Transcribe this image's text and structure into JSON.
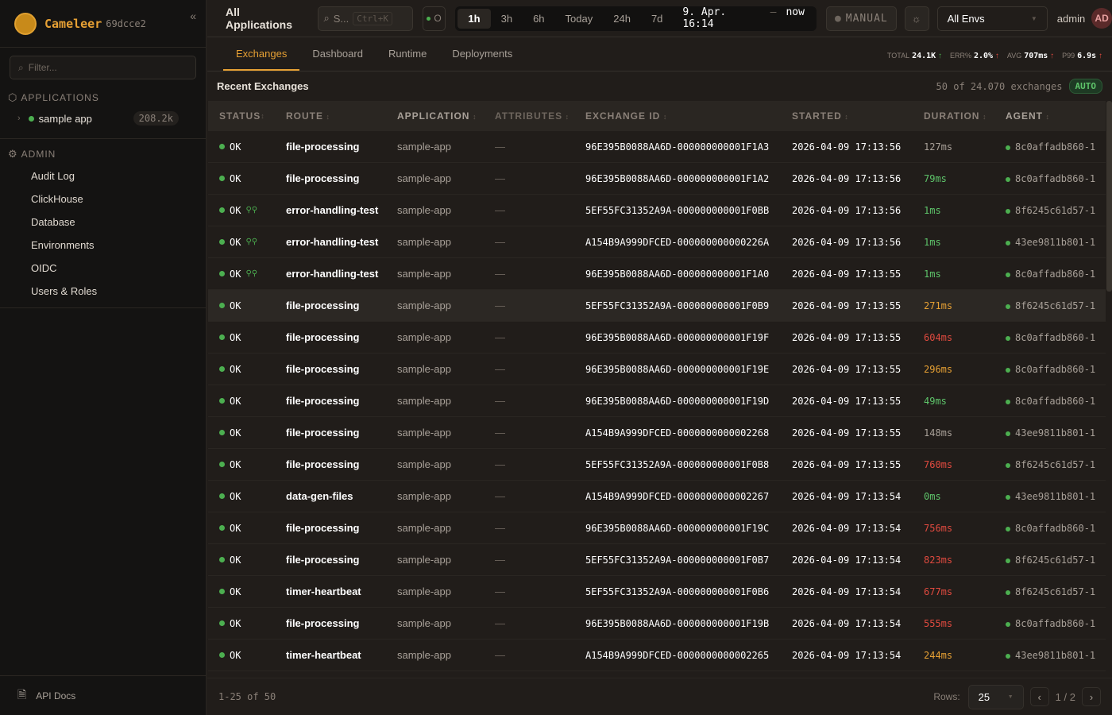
{
  "brand": {
    "name": "Cameleer",
    "version": "69dcce2"
  },
  "sidebar": {
    "filter_placeholder": "Filter...",
    "applications_label": "APPLICATIONS",
    "apps": [
      {
        "name": "sample app",
        "count": "208.2k"
      }
    ],
    "admin_label": "ADMIN",
    "admin_items": [
      "Audit Log",
      "ClickHouse",
      "Database",
      "Environments",
      "OIDC",
      "Users & Roles"
    ],
    "api_docs": "API Docs"
  },
  "topbar": {
    "title": "All Applications",
    "search_placeholder": "S...",
    "search_shortcut": "Ctrl+K",
    "live_label": "O",
    "time_buttons": [
      "1h",
      "3h",
      "6h",
      "Today",
      "24h",
      "7d"
    ],
    "active_time": "1h",
    "range_from": "9. Apr. 16:14",
    "range_sep": "–",
    "range_to": "now",
    "manual_label": "MANUAL",
    "env_select": "All Envs",
    "user": "admin",
    "avatar": "AD"
  },
  "tabs": [
    {
      "label": "Exchanges",
      "active": true
    },
    {
      "label": "Dashboard"
    },
    {
      "label": "Runtime"
    },
    {
      "label": "Deployments"
    }
  ],
  "kpis": [
    {
      "label": "TOTAL",
      "value": "24.1K",
      "trend": "up-good"
    },
    {
      "label": "ERR%",
      "value": "2.0%",
      "trend": "up-bad"
    },
    {
      "label": "AVG",
      "value": "707ms",
      "trend": "up-bad"
    },
    {
      "label": "P99",
      "value": "6.9s",
      "trend": "up-bad"
    }
  ],
  "section": {
    "title": "Recent Exchanges",
    "count": "50 of 24.070 exchanges",
    "auto": "AUTO"
  },
  "columns": [
    "STATUS",
    "ROUTE",
    "APPLICATION",
    "ATTRIBUTES",
    "EXCHANGE ID",
    "STARTED",
    "DURATION",
    "AGENT"
  ],
  "rows": [
    [
      "OK",
      false,
      "file-processing",
      "sample-app",
      "—",
      "96E395B0088AA6D-000000000001F1A3",
      "2026-04-09 17:13:56",
      "127ms",
      "8c0affadb860-1"
    ],
    [
      "OK",
      false,
      "file-processing",
      "sample-app",
      "—",
      "96E395B0088AA6D-000000000001F1A2",
      "2026-04-09 17:13:56",
      "79ms",
      "8c0affadb860-1"
    ],
    [
      "OK",
      true,
      "error-handling-test",
      "sample-app",
      "—",
      "5EF55FC31352A9A-000000000001F0BB",
      "2026-04-09 17:13:56",
      "1ms",
      "8f6245c61d57-1"
    ],
    [
      "OK",
      true,
      "error-handling-test",
      "sample-app",
      "—",
      "A154B9A999DFCED-000000000000226A",
      "2026-04-09 17:13:56",
      "1ms",
      "43ee9811b801-1"
    ],
    [
      "OK",
      true,
      "error-handling-test",
      "sample-app",
      "—",
      "96E395B0088AA6D-000000000001F1A0",
      "2026-04-09 17:13:55",
      "1ms",
      "8c0affadb860-1"
    ],
    [
      "OK",
      false,
      "file-processing",
      "sample-app",
      "—",
      "5EF55FC31352A9A-000000000001F0B9",
      "2026-04-09 17:13:55",
      "271ms",
      "8f6245c61d57-1"
    ],
    [
      "OK",
      false,
      "file-processing",
      "sample-app",
      "—",
      "96E395B0088AA6D-000000000001F19F",
      "2026-04-09 17:13:55",
      "604ms",
      "8c0affadb860-1"
    ],
    [
      "OK",
      false,
      "file-processing",
      "sample-app",
      "—",
      "96E395B0088AA6D-000000000001F19E",
      "2026-04-09 17:13:55",
      "296ms",
      "8c0affadb860-1"
    ],
    [
      "OK",
      false,
      "file-processing",
      "sample-app",
      "—",
      "96E395B0088AA6D-000000000001F19D",
      "2026-04-09 17:13:55",
      "49ms",
      "8c0affadb860-1"
    ],
    [
      "OK",
      false,
      "file-processing",
      "sample-app",
      "—",
      "A154B9A999DFCED-0000000000002268",
      "2026-04-09 17:13:55",
      "148ms",
      "43ee9811b801-1"
    ],
    [
      "OK",
      false,
      "file-processing",
      "sample-app",
      "—",
      "5EF55FC31352A9A-000000000001F0B8",
      "2026-04-09 17:13:55",
      "760ms",
      "8f6245c61d57-1"
    ],
    [
      "OK",
      false,
      "data-gen-files",
      "sample-app",
      "—",
      "A154B9A999DFCED-0000000000002267",
      "2026-04-09 17:13:54",
      "0ms",
      "43ee9811b801-1"
    ],
    [
      "OK",
      false,
      "file-processing",
      "sample-app",
      "—",
      "96E395B0088AA6D-000000000001F19C",
      "2026-04-09 17:13:54",
      "756ms",
      "8c0affadb860-1"
    ],
    [
      "OK",
      false,
      "file-processing",
      "sample-app",
      "—",
      "5EF55FC31352A9A-000000000001F0B7",
      "2026-04-09 17:13:54",
      "823ms",
      "8f6245c61d57-1"
    ],
    [
      "OK",
      false,
      "timer-heartbeat",
      "sample-app",
      "—",
      "5EF55FC31352A9A-000000000001F0B6",
      "2026-04-09 17:13:54",
      "677ms",
      "8f6245c61d57-1"
    ],
    [
      "OK",
      false,
      "file-processing",
      "sample-app",
      "—",
      "96E395B0088AA6D-000000000001F19B",
      "2026-04-09 17:13:54",
      "555ms",
      "8c0affadb860-1"
    ],
    [
      "OK",
      false,
      "timer-heartbeat",
      "sample-app",
      "—",
      "A154B9A999DFCED-0000000000002265",
      "2026-04-09 17:13:54",
      "244ms",
      "43ee9811b801-1"
    ]
  ],
  "highlighted_row": 5,
  "colors": {
    "accent": "#e6a034",
    "ok": "#4caf50",
    "fast": "#5ec46a",
    "normal": "#a8a098",
    "slow": "#e6a034",
    "very_slow": "#e04a3f"
  },
  "footer": {
    "range": "1-25 of 50",
    "rows_label": "Rows:",
    "rows_value": "25",
    "page": "1",
    "page_sep": "/",
    "pages": "2"
  }
}
